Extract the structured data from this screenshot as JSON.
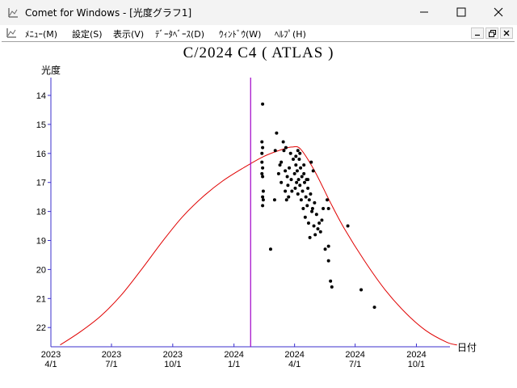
{
  "window": {
    "title": "Comet for Windows - [光度グラフ1]",
    "icon": "chart-app-icon",
    "controls": [
      "minimize-icon",
      "maximize-icon",
      "close-icon"
    ]
  },
  "menu": {
    "items": [
      "ﾒﾆｭｰ(M)",
      "設定(S)",
      "表示(V)",
      "ﾃﾞｰﾀﾍﾞｰｽ(D)",
      "ｳｨﾝﾄﾞｳ(W)",
      "ﾍﾙﾌﾟ(H)"
    ],
    "mdi_controls": [
      "mdi-minimize-icon",
      "mdi-restore-icon",
      "mdi-close-icon"
    ]
  },
  "colors": {
    "axis": "#3b2fcc",
    "prediction_curve": "#e00000",
    "today_line": "#a000c8",
    "observations": "#000000"
  },
  "chart_data": {
    "type": "scatter",
    "title": "C/2024 C4 ( ATLAS )",
    "ylabel": "光度",
    "xlabel": "日付",
    "y_inverted": true,
    "ylim": [
      22.6,
      13.5
    ],
    "y_ticks": [
      "14",
      "15",
      "16",
      "17",
      "18",
      "19",
      "20",
      "21",
      "22"
    ],
    "x_ticks": [
      {
        "year": "2023",
        "date": "4/1",
        "x": "2023-04-01"
      },
      {
        "year": "2023",
        "date": "7/1",
        "x": "2023-07-01"
      },
      {
        "year": "2023",
        "date": "10/1",
        "x": "2023-10-01"
      },
      {
        "year": "2024",
        "date": "1/1",
        "x": "2024-01-01"
      },
      {
        "year": "2024",
        "date": "4/1",
        "x": "2024-04-01"
      },
      {
        "year": "2024",
        "date": "7/1",
        "x": "2024-07-01"
      },
      {
        "year": "2024",
        "date": "10/1",
        "x": "2024-10-01"
      }
    ],
    "xlim": [
      "2023-04-01",
      "2025-01-10"
    ],
    "today_marker": "2024-01-26",
    "prediction_curve": [
      {
        "x": "2023-04-15",
        "y": 22.6
      },
      {
        "x": "2023-05-15",
        "y": 22.15
      },
      {
        "x": "2023-06-15",
        "y": 21.6
      },
      {
        "x": "2023-07-15",
        "y": 20.9
      },
      {
        "x": "2023-08-15",
        "y": 20.0
      },
      {
        "x": "2023-09-15",
        "y": 19.05
      },
      {
        "x": "2023-10-15",
        "y": 18.2
      },
      {
        "x": "2023-11-15",
        "y": 17.5
      },
      {
        "x": "2023-12-15",
        "y": 16.95
      },
      {
        "x": "2024-01-15",
        "y": 16.5
      },
      {
        "x": "2024-02-15",
        "y": 16.1
      },
      {
        "x": "2024-03-15",
        "y": 15.85
      },
      {
        "x": "2024-03-28",
        "y": 15.78
      },
      {
        "x": "2024-04-10",
        "y": 15.85
      },
      {
        "x": "2024-05-01",
        "y": 16.6
      },
      {
        "x": "2024-05-25",
        "y": 17.7
      },
      {
        "x": "2024-06-15",
        "y": 18.6
      },
      {
        "x": "2024-07-15",
        "y": 19.7
      },
      {
        "x": "2024-08-15",
        "y": 20.7
      },
      {
        "x": "2024-09-15",
        "y": 21.5
      },
      {
        "x": "2024-10-15",
        "y": 22.1
      },
      {
        "x": "2024-11-15",
        "y": 22.5
      },
      {
        "x": "2024-12-01",
        "y": 22.6
      }
    ],
    "observations": [
      {
        "x": "2024-02-13",
        "y": 14.3
      },
      {
        "x": "2024-02-12",
        "y": 15.6
      },
      {
        "x": "2024-02-13",
        "y": 15.8
      },
      {
        "x": "2024-02-12",
        "y": 16.0
      },
      {
        "x": "2024-02-13",
        "y": 16.5
      },
      {
        "x": "2024-02-12",
        "y": 16.7
      },
      {
        "x": "2024-02-13",
        "y": 16.8
      },
      {
        "x": "2024-02-14",
        "y": 17.3
      },
      {
        "x": "2024-02-13",
        "y": 17.5
      },
      {
        "x": "2024-02-13",
        "y": 17.8
      },
      {
        "x": "2024-02-14",
        "y": 17.6
      },
      {
        "x": "2024-02-12",
        "y": 16.3
      },
      {
        "x": "2024-02-25",
        "y": 19.3
      },
      {
        "x": "2024-03-02",
        "y": 17.6
      },
      {
        "x": "2024-03-05",
        "y": 15.3
      },
      {
        "x": "2024-03-03",
        "y": 15.9
      },
      {
        "x": "2024-03-08",
        "y": 16.7
      },
      {
        "x": "2024-03-10",
        "y": 16.4
      },
      {
        "x": "2024-03-12",
        "y": 16.3
      },
      {
        "x": "2024-03-12",
        "y": 17.0
      },
      {
        "x": "2024-03-15",
        "y": 15.6
      },
      {
        "x": "2024-03-16",
        "y": 15.9
      },
      {
        "x": "2024-03-18",
        "y": 16.6
      },
      {
        "x": "2024-03-18",
        "y": 17.3
      },
      {
        "x": "2024-03-20",
        "y": 17.6
      },
      {
        "x": "2024-03-21",
        "y": 16.8
      },
      {
        "x": "2024-03-22",
        "y": 17.1
      },
      {
        "x": "2024-03-23",
        "y": 17.5
      },
      {
        "x": "2024-03-24",
        "y": 16.5
      },
      {
        "x": "2024-03-26",
        "y": 16.0
      },
      {
        "x": "2024-03-27",
        "y": 16.9
      },
      {
        "x": "2024-03-28",
        "y": 17.3
      },
      {
        "x": "2024-03-30",
        "y": 16.2
      },
      {
        "x": "2024-04-01",
        "y": 16.7
      },
      {
        "x": "2024-04-02",
        "y": 17.2
      },
      {
        "x": "2024-04-03",
        "y": 16.4
      },
      {
        "x": "2024-04-04",
        "y": 17.0
      },
      {
        "x": "2024-04-05",
        "y": 16.6
      },
      {
        "x": "2024-04-06",
        "y": 17.4
      },
      {
        "x": "2024-04-07",
        "y": 16.9
      },
      {
        "x": "2024-04-08",
        "y": 16.2
      },
      {
        "x": "2024-04-09",
        "y": 17.1
      },
      {
        "x": "2024-04-10",
        "y": 16.5
      },
      {
        "x": "2024-04-11",
        "y": 17.6
      },
      {
        "x": "2024-04-12",
        "y": 16.8
      },
      {
        "x": "2024-04-13",
        "y": 17.3
      },
      {
        "x": "2024-04-14",
        "y": 17.9
      },
      {
        "x": "2024-04-15",
        "y": 16.7
      },
      {
        "x": "2024-04-16",
        "y": 17.0
      },
      {
        "x": "2024-04-17",
        "y": 18.2
      },
      {
        "x": "2024-04-18",
        "y": 17.5
      },
      {
        "x": "2024-04-19",
        "y": 16.9
      },
      {
        "x": "2024-04-20",
        "y": 17.8
      },
      {
        "x": "2024-04-21",
        "y": 17.2
      },
      {
        "x": "2024-04-22",
        "y": 18.4
      },
      {
        "x": "2024-04-23",
        "y": 17.6
      },
      {
        "x": "2024-04-24",
        "y": 18.9
      },
      {
        "x": "2024-04-25",
        "y": 17.4
      },
      {
        "x": "2024-04-26",
        "y": 16.3
      },
      {
        "x": "2024-04-27",
        "y": 18.0
      },
      {
        "x": "2024-04-28",
        "y": 17.9
      },
      {
        "x": "2024-04-29",
        "y": 16.6
      },
      {
        "x": "2024-04-30",
        "y": 18.5
      },
      {
        "x": "2024-05-01",
        "y": 17.7
      },
      {
        "x": "2024-05-02",
        "y": 18.8
      },
      {
        "x": "2024-05-04",
        "y": 18.1
      },
      {
        "x": "2024-05-06",
        "y": 18.6
      },
      {
        "x": "2024-05-08",
        "y": 18.4
      },
      {
        "x": "2024-05-10",
        "y": 18.7
      },
      {
        "x": "2024-05-12",
        "y": 18.3
      },
      {
        "x": "2024-05-14",
        "y": 17.9
      },
      {
        "x": "2024-05-17",
        "y": 19.3
      },
      {
        "x": "2024-05-20",
        "y": 17.6
      },
      {
        "x": "2024-05-22",
        "y": 19.7
      },
      {
        "x": "2024-05-22",
        "y": 19.2
      },
      {
        "x": "2024-05-22",
        "y": 17.9
      },
      {
        "x": "2024-05-25",
        "y": 20.4
      },
      {
        "x": "2024-05-27",
        "y": 20.6
      },
      {
        "x": "2024-06-20",
        "y": 18.5
      },
      {
        "x": "2024-07-10",
        "y": 20.7
      },
      {
        "x": "2024-07-30",
        "y": 21.3
      },
      {
        "x": "2024-04-03",
        "y": 16.1
      },
      {
        "x": "2024-04-09",
        "y": 16.0
      },
      {
        "x": "2024-04-15",
        "y": 16.4
      },
      {
        "x": "2024-04-21",
        "y": 16.9
      },
      {
        "x": "2024-03-19",
        "y": 15.8
      },
      {
        "x": "2024-04-06",
        "y": 15.9
      }
    ]
  }
}
